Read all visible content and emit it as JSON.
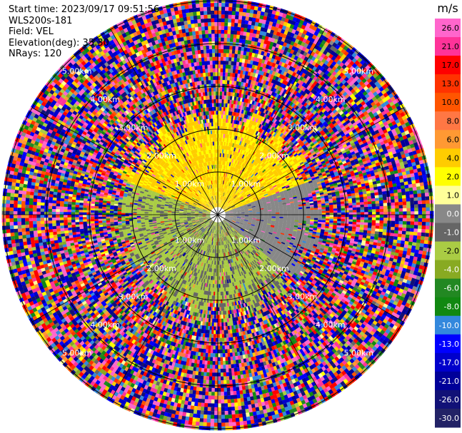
{
  "header": {
    "start_time": "Start time: 2023/09/17 09:51:56",
    "instrument": "WLS200s-181",
    "field": "Field: VEL",
    "elevation": "Elevation(deg): 35.30",
    "nrays": "NRays: 120"
  },
  "chart_data": {
    "type": "heatmap",
    "projection": "polar PPI",
    "field": "VEL",
    "unit": "m/s",
    "nrays": 120,
    "elevation_deg": 35.3,
    "range_rings_km": [
      1.0,
      2.0,
      3.0,
      4.0,
      5.0
    ],
    "ring_labels": [
      "1.00km",
      "2.00km",
      "3.00km",
      "4.00km",
      "5.00km"
    ],
    "spokes_deg": [
      0,
      30,
      60,
      90,
      120,
      150,
      180,
      210,
      240,
      270,
      300,
      330
    ],
    "colorbar": {
      "ticks": [
        "26.0",
        "21.0",
        "17.0",
        "13.0",
        "10.0",
        "8.0",
        "6.0",
        "4.0",
        "2.0",
        "1.0",
        "0.0",
        "-1.0",
        "-2.0",
        "-4.0",
        "-6.0",
        "-8.0",
        "-10.0",
        "-13.0",
        "-17.0",
        "-21.0",
        "-26.0",
        "-30.0"
      ],
      "colors": [
        "#ff66cc",
        "#ff3399",
        "#ff0000",
        "#ff3300",
        "#ff5500",
        "#ff7744",
        "#ff9933",
        "#ffcc00",
        "#ffff00",
        "#ffff99",
        "#888888",
        "#666666",
        "#aacc44",
        "#88aa22",
        "#228822",
        "#118811",
        "#3388dd",
        "#0000ff",
        "#0000cc",
        "#000099",
        "#111177",
        "#222266"
      ]
    },
    "inner_field": {
      "clear_air_range_km": 2.0,
      "north_sector_vel_range": [
        1.0,
        4.0
      ],
      "east_sector_vel_range": [
        -1.0,
        0.0
      ],
      "south_sector_vel_range": [
        -4.0,
        -1.0
      ]
    }
  }
}
